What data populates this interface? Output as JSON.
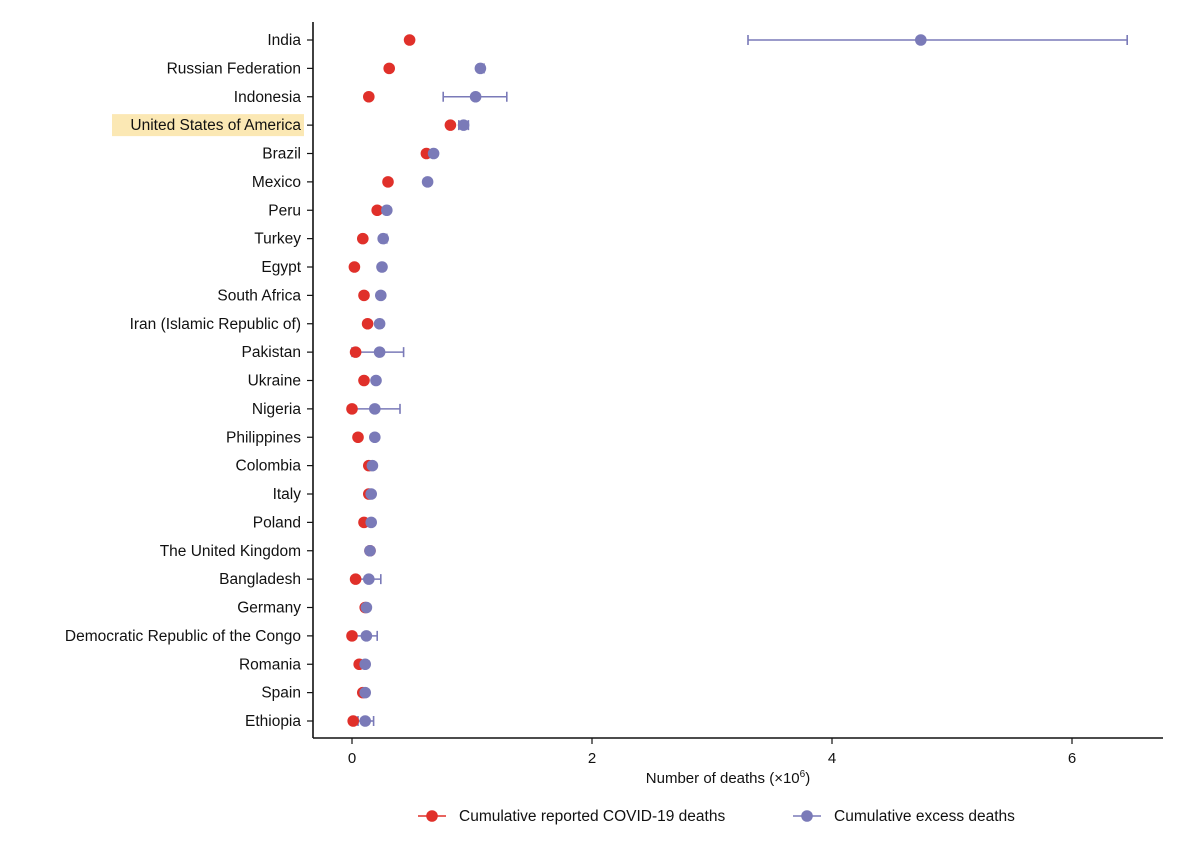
{
  "chart_data": {
    "type": "scatter",
    "orientation": "horizontal",
    "xlabel_main": "Number of deaths (×10",
    "xlabel_exp": "6",
    "xlabel_close": ")",
    "xlim": [
      -0.32,
      6.8
    ],
    "xticks": [
      "0",
      "2",
      "4",
      "6"
    ],
    "xtick_values": [
      0,
      2,
      4,
      6
    ],
    "highlighted_category": "United States of America",
    "categories": [
      "India",
      "Russian Federation",
      "Indonesia",
      "United States of America",
      "Brazil",
      "Mexico",
      "Peru",
      "Turkey",
      "Egypt",
      "South Africa",
      "Iran (Islamic Republic of)",
      "Pakistan",
      "Ukraine",
      "Nigeria",
      "Philippines",
      "Colombia",
      "Italy",
      "Poland",
      "The United Kingdom",
      "Bangladesh",
      "Germany",
      "Democratic Republic of the Congo",
      "Romania",
      "Spain",
      "Ethiopia"
    ],
    "series": [
      {
        "name": "Cumulative reported COVID-19 deaths",
        "color": "#e0302a",
        "values": [
          0.48,
          0.31,
          0.14,
          0.82,
          0.62,
          0.3,
          0.21,
          0.09,
          0.02,
          0.1,
          0.13,
          0.03,
          0.1,
          0.0,
          0.05,
          0.14,
          0.14,
          0.1,
          0.15,
          0.03,
          0.11,
          0.0,
          0.06,
          0.09,
          0.01
        ]
      },
      {
        "name": "Cumulative excess deaths",
        "color": "#7a7ab8",
        "values": [
          4.74,
          1.07,
          1.03,
          0.93,
          0.68,
          0.63,
          0.29,
          0.26,
          0.25,
          0.24,
          0.23,
          0.23,
          0.2,
          0.19,
          0.19,
          0.17,
          0.16,
          0.16,
          0.15,
          0.14,
          0.12,
          0.12,
          0.11,
          0.11,
          0.11
        ],
        "lower": [
          3.3,
          1.05,
          0.76,
          0.89,
          0.67,
          0.62,
          0.27,
          0.24,
          0.23,
          0.23,
          0.22,
          0.0,
          0.19,
          0.0,
          0.18,
          0.16,
          0.15,
          0.15,
          0.14,
          0.04,
          0.11,
          0.0,
          0.1,
          0.1,
          0.05
        ],
        "upper": [
          6.46,
          1.1,
          1.29,
          0.97,
          0.7,
          0.65,
          0.31,
          0.29,
          0.27,
          0.25,
          0.25,
          0.43,
          0.21,
          0.4,
          0.2,
          0.18,
          0.17,
          0.17,
          0.16,
          0.24,
          0.13,
          0.21,
          0.12,
          0.12,
          0.18
        ]
      }
    ],
    "legend": [
      {
        "label": "Cumulative reported COVID-19 deaths",
        "color": "#e0302a"
      },
      {
        "label": "Cumulative excess deaths",
        "color": "#7a7ab8"
      }
    ],
    "legend_position": "bottom",
    "grid": false
  }
}
